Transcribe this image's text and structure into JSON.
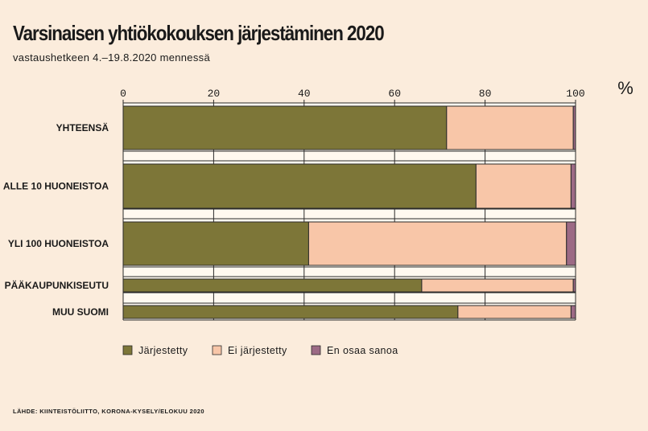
{
  "title": "Varsinaisen yhtiökokouksen järjestäminen 2020",
  "subtitle": "vastaushetkeen 4.–19.8.2020 mennessä",
  "source": "LÄHDE: KIINTEISTÖLIITTO, KORONA-KYSELY/ELOKUU 2020",
  "chart_data": {
    "type": "bar",
    "orientation": "horizontal",
    "stacked": true,
    "unit_label": "%",
    "xlim": [
      0,
      100
    ],
    "xticks": [
      "0",
      "20",
      "40",
      "60",
      "80",
      "100"
    ],
    "grid": true,
    "legend_position": "bottom-left",
    "categories": [
      "YHTEENSÄ",
      "ALLE 10 HUONEISTOA",
      "YLI 100 HUONEISTOA",
      "PÄÄKAUPUNKISEUTU",
      "MUU SUOMI"
    ],
    "series": [
      {
        "name": "Järjestetty",
        "color": "#7d7638",
        "values": [
          71.5,
          78,
          41,
          66,
          74
        ]
      },
      {
        "name": "Ei järjestetty",
        "color": "#f8c6a8",
        "values": [
          28,
          21,
          57,
          33.5,
          25
        ]
      },
      {
        "name": "En osaa sanoa",
        "color": "#9c6a85",
        "values": [
          0.5,
          1,
          2,
          0.5,
          1
        ]
      }
    ]
  }
}
